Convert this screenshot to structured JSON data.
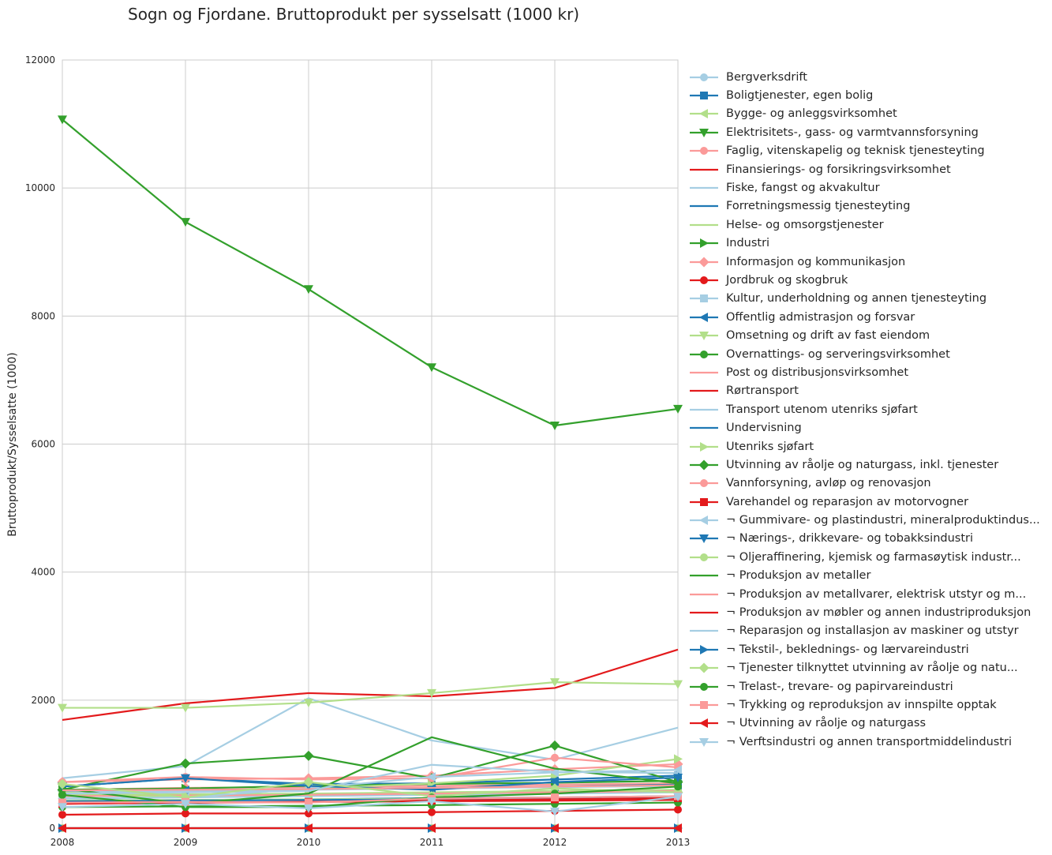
{
  "chart_data": {
    "type": "line",
    "title": "Sogn og Fjordane. Bruttoprodukt per sysselsatt (1000 kr)",
    "xlabel": "",
    "ylabel": "Bruttoprodukt/Sysselsatte (1000)",
    "xlim": [
      2008,
      2013
    ],
    "ylim": [
      0,
      12000
    ],
    "x": [
      2008,
      2009,
      2010,
      2011,
      2012,
      2013
    ],
    "x_tick_labels": [
      "2008",
      "2009",
      "2010",
      "2011",
      "2012",
      "2013"
    ],
    "y_ticks": [
      0,
      2000,
      4000,
      6000,
      8000,
      10000,
      12000
    ],
    "y_tick_labels": [
      "0",
      "2000",
      "4000",
      "6000",
      "8000",
      "10000",
      "12000"
    ],
    "grid": true,
    "legend_position": "outside right",
    "series": [
      {
        "name": "Bergverksdrift",
        "color": "#a6cee3",
        "marker": "circle",
        "values": [
          470,
          480,
          500,
          520,
          540,
          560
        ]
      },
      {
        "name": "Boligtjenester, egen bolig",
        "color": "#1f78b4",
        "marker": "square",
        "values": [
          650,
          780,
          690,
          700,
          760,
          820
        ]
      },
      {
        "name": "Bygge- og anleggsvirksomhet",
        "color": "#b2df8a",
        "marker": "triangle-left",
        "values": [
          520,
          530,
          540,
          560,
          580,
          600
        ]
      },
      {
        "name": "Elektrisitets-, gass- og varmtvannsforsyning",
        "color": "#33a02c",
        "marker": "triangle-down",
        "values": [
          11070,
          9470,
          8420,
          7200,
          6290,
          6550
        ]
      },
      {
        "name": "Faglig, vitenskapelig og teknisk tjenesteyting",
        "color": "#fb9a99",
        "marker": "circle",
        "values": [
          600,
          630,
          640,
          660,
          680,
          700
        ]
      },
      {
        "name": "Finansierings- og forsikringsvirksomhet",
        "color": "#e31a1c",
        "marker": "none",
        "values": [
          1690,
          1950,
          2110,
          2060,
          2190,
          2790
        ]
      },
      {
        "name": "Fiske, fangst og akvakultur",
        "color": "#a6cee3",
        "marker": "none",
        "values": [
          780,
          970,
          2030,
          1370,
          1070,
          1570
        ]
      },
      {
        "name": "Forretningsmessig tjenesteyting",
        "color": "#1f78b4",
        "marker": "none",
        "values": [
          430,
          440,
          450,
          470,
          480,
          500
        ]
      },
      {
        "name": "Helse- og omsorgstjenester",
        "color": "#b2df8a",
        "marker": "none",
        "values": [
          430,
          440,
          450,
          460,
          470,
          480
        ]
      },
      {
        "name": "Industri",
        "color": "#33a02c",
        "marker": "triangle-right",
        "values": [
          600,
          620,
          660,
          690,
          710,
          740
        ]
      },
      {
        "name": "Informasjon og kommunikasjon",
        "color": "#fb9a99",
        "marker": "diamond",
        "values": [
          720,
          760,
          780,
          820,
          920,
          1000
        ]
      },
      {
        "name": "Jordbruk og skogbruk",
        "color": "#e31a1c",
        "marker": "circle",
        "values": [
          210,
          230,
          230,
          250,
          270,
          290
        ]
      },
      {
        "name": "Kultur, underholdning og annen tjenesteyting",
        "color": "#a6cee3",
        "marker": "square",
        "values": [
          390,
          400,
          410,
          420,
          430,
          450
        ]
      },
      {
        "name": "Offentlig admistrasjon og forsvar",
        "color": "#1f78b4",
        "marker": "triangle-left",
        "values": [
          580,
          590,
          610,
          630,
          650,
          680
        ]
      },
      {
        "name": "Omsetning og drift av fast eiendom",
        "color": "#b2df8a",
        "marker": "triangle-down",
        "values": [
          1880,
          1880,
          1960,
          2110,
          2280,
          2250
        ]
      },
      {
        "name": "Overnattings- og serveringsvirksomhet",
        "color": "#33a02c",
        "marker": "circle",
        "values": [
          330,
          340,
          350,
          360,
          380,
          400
        ]
      },
      {
        "name": "Post og distribusjonsvirksomhet",
        "color": "#fb9a99",
        "marker": "none",
        "values": [
          500,
          510,
          520,
          540,
          560,
          580
        ]
      },
      {
        "name": "Rørtransport",
        "color": "#e31a1c",
        "marker": "none",
        "values": [
          0,
          0,
          0,
          0,
          0,
          0
        ]
      },
      {
        "name": "Transport utenom utenriks sjøfart",
        "color": "#a6cee3",
        "marker": "none",
        "values": [
          560,
          580,
          600,
          620,
          640,
          660
        ]
      },
      {
        "name": "Undervisning",
        "color": "#1f78b4",
        "marker": "none",
        "values": [
          420,
          430,
          440,
          450,
          460,
          470
        ]
      },
      {
        "name": "Utenriks sjøfart",
        "color": "#b2df8a",
        "marker": "triangle-right",
        "values": [
          560,
          480,
          620,
          700,
          820,
          1080
        ]
      },
      {
        "name": "Utvinning av råolje og naturgass, inkl. tjenester",
        "color": "#33a02c",
        "marker": "diamond",
        "values": [
          600,
          1010,
          1130,
          780,
          1290,
          720
        ]
      },
      {
        "name": "Vannforsyning, avløp og renovasjon",
        "color": "#fb9a99",
        "marker": "circle",
        "values": [
          720,
          800,
          760,
          780,
          1100,
          950
        ]
      },
      {
        "name": "Varehandel og reparasjon av motorvogner",
        "color": "#e31a1c",
        "marker": "square",
        "values": [
          380,
          400,
          410,
          430,
          450,
          470
        ]
      },
      {
        "name": "¬ Gummivare- og plastindustri, mineralproduktindus...",
        "color": "#a6cee3",
        "marker": "triangle-left",
        "values": [
          460,
          480,
          620,
          800,
          870,
          910
        ]
      },
      {
        "name": "¬ Nærings-, drikkevare- og tobakksindustri",
        "color": "#1f78b4",
        "marker": "triangle-down",
        "values": [
          650,
          780,
          660,
          600,
          720,
          790
        ]
      },
      {
        "name": "¬ Oljeraffinering, kjemisk og farmasøytisk industr...",
        "color": "#b2df8a",
        "marker": "circle",
        "values": [
          0,
          0,
          0,
          0,
          0,
          0
        ]
      },
      {
        "name": "¬ Produksjon av metaller",
        "color": "#33a02c",
        "marker": "none",
        "values": [
          620,
          380,
          540,
          1420,
          930,
          700
        ]
      },
      {
        "name": "¬ Produksjon av metallvarer, elektrisk utstyr og m...",
        "color": "#fb9a99",
        "marker": "none",
        "values": [
          590,
          600,
          610,
          630,
          650,
          670
        ]
      },
      {
        "name": "¬ Produksjon av møbler og annen industriproduksjon",
        "color": "#e31a1c",
        "marker": "none",
        "values": [
          380,
          400,
          410,
          420,
          430,
          440
        ]
      },
      {
        "name": "¬ Reparasjon og installasjon av maskiner og utstyr",
        "color": "#a6cee3",
        "marker": "none",
        "values": [
          540,
          560,
          580,
          990,
          880,
          860
        ]
      },
      {
        "name": "¬ Tekstil-, beklednings- og lærvareindustri",
        "color": "#1f78b4",
        "marker": "triangle-right",
        "values": [
          0,
          0,
          0,
          0,
          0,
          0
        ]
      },
      {
        "name": "¬ Tjenester tilknyttet utvinning av råolje og natu...",
        "color": "#b2df8a",
        "marker": "diamond",
        "values": [
          690,
          480,
          720,
          500,
          620,
          560
        ]
      },
      {
        "name": "¬ Trelast-, trevare- og papirvareindustri",
        "color": "#33a02c",
        "marker": "circle",
        "values": [
          520,
          330,
          330,
          480,
          540,
          650
        ]
      },
      {
        "name": "¬ Trykking og reproduksjon av innspilte opptak",
        "color": "#fb9a99",
        "marker": "square",
        "values": [
          400,
          410,
          400,
          460,
          480,
          500
        ]
      },
      {
        "name": "¬ Utvinning av råolje og naturgass",
        "color": "#e31a1c",
        "marker": "triangle-left",
        "values": [
          0,
          0,
          0,
          0,
          0,
          0
        ]
      },
      {
        "name": "¬ Verftsindustri og annen transportmiddelindustri",
        "color": "#a6cee3",
        "marker": "triangle-down",
        "values": [
          330,
          380,
          310,
          420,
          260,
          490
        ]
      }
    ]
  }
}
